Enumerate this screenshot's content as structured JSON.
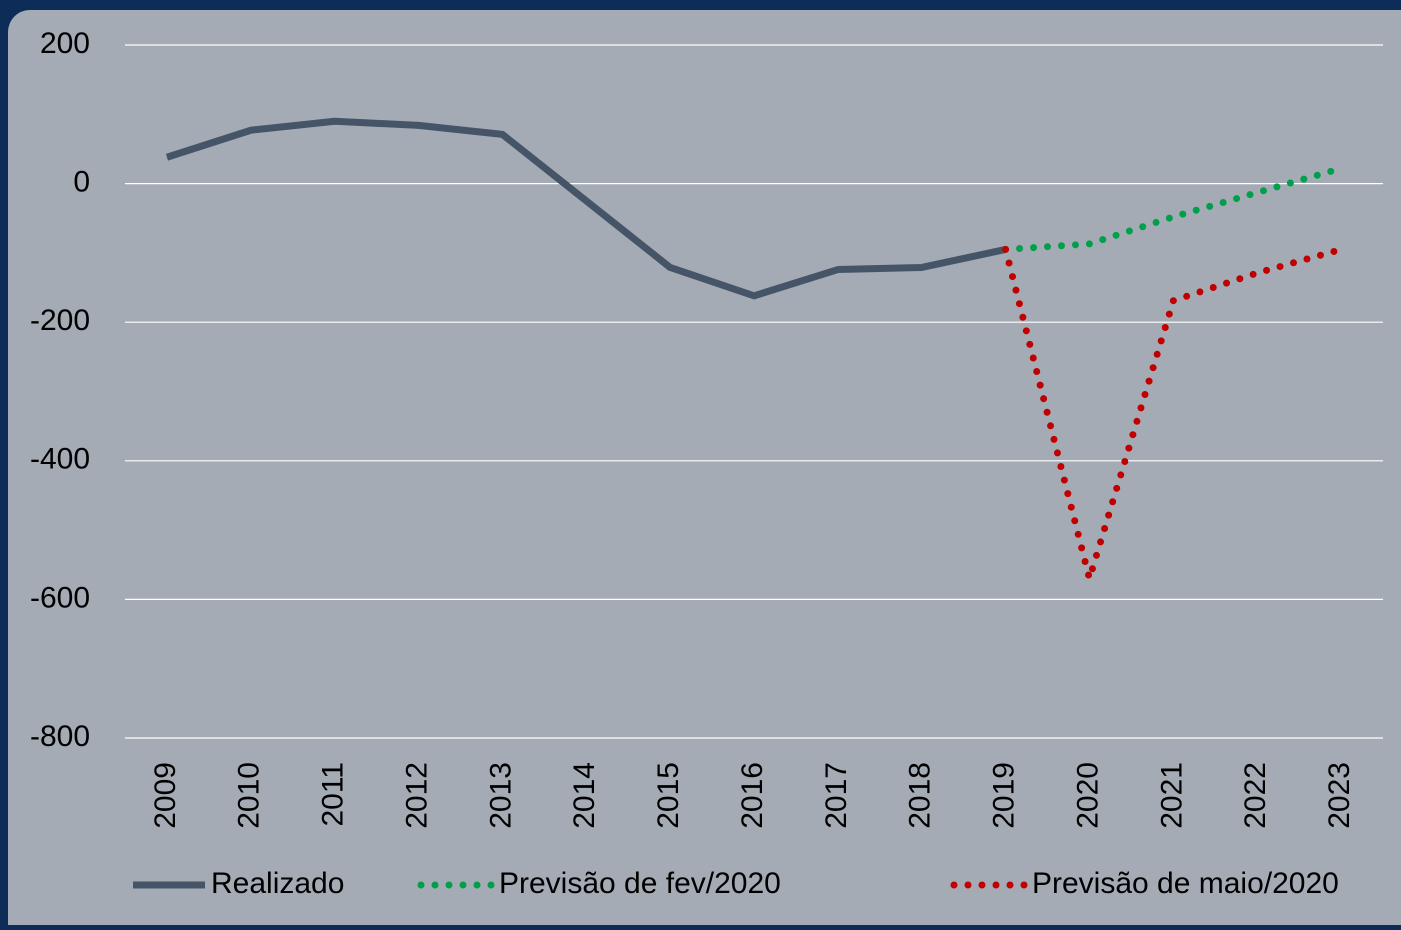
{
  "chart_data": {
    "type": "line",
    "categories": [
      "2009",
      "2010",
      "2011",
      "2012",
      "2013",
      "2014",
      "2015",
      "2016",
      "2017",
      "2018",
      "2019",
      "2020",
      "2021",
      "2022",
      "2023"
    ],
    "series": [
      {
        "name": "Realizado",
        "color": "#465468",
        "style": "solid",
        "values": [
          38,
          77,
          90,
          84,
          71,
          -25,
          -121,
          -162,
          -124,
          -121,
          -95,
          null,
          null,
          null,
          null
        ]
      },
      {
        "name": "Previsão de fev/2020",
        "color": "#00a04a",
        "style": "dotted",
        "values": [
          null,
          null,
          null,
          null,
          null,
          null,
          null,
          null,
          null,
          null,
          -95,
          -87,
          -48,
          -13,
          22
        ]
      },
      {
        "name": "Previsão de maio/2020",
        "color": "#c00000",
        "style": "dotted",
        "values": [
          null,
          null,
          null,
          null,
          null,
          null,
          null,
          null,
          null,
          null,
          -95,
          -570,
          -169,
          -129,
          -95
        ]
      }
    ],
    "ylim": [
      -800,
      200
    ],
    "yticks": [
      -800,
      -600,
      -400,
      -200,
      0,
      200
    ],
    "grid": true,
    "legend": "bottom"
  }
}
